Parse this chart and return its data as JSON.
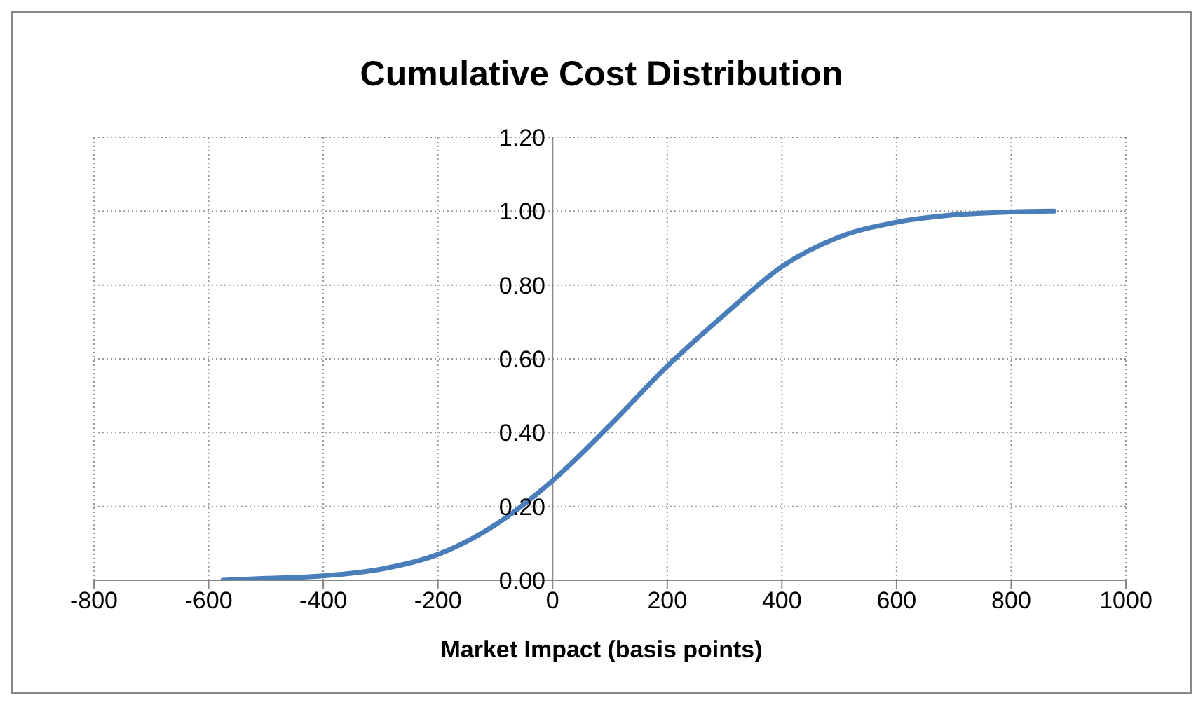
{
  "chart_data": {
    "type": "line",
    "title": "Cumulative Cost Distribution",
    "xlabel": "Market Impact (basis points)",
    "x": [
      -575,
      -500,
      -400,
      -300,
      -200,
      -100,
      0,
      100,
      200,
      300,
      400,
      500,
      600,
      700,
      800,
      875
    ],
    "series": [
      {
        "color": "#4a7ebb",
        "values": [
          0,
          0.005,
          0.012,
          0.03,
          0.07,
          0.15,
          0.27,
          0.42,
          0.58,
          0.72,
          0.85,
          0.93,
          0.97,
          0.99,
          0.998,
          1.0
        ]
      }
    ],
    "xlim": [
      -800,
      1000
    ],
    "xticks": [
      -800,
      -600,
      -400,
      -200,
      0,
      200,
      400,
      600,
      800,
      1000
    ],
    "ylim": [
      0,
      1.2
    ],
    "yticks": [
      {
        "value": 0,
        "label": "0.00"
      },
      {
        "value": 0.2,
        "label": "0.20"
      },
      {
        "value": 0.4,
        "label": "0.40"
      },
      {
        "value": 0.6,
        "label": "0.60"
      },
      {
        "value": 0.8,
        "label": "0.80"
      },
      {
        "value": 1,
        "label": "1.00"
      },
      {
        "value": 1.2,
        "label": "1.20"
      }
    ],
    "grid": true,
    "legend": false,
    "marker": "none",
    "line_style": "solid"
  }
}
